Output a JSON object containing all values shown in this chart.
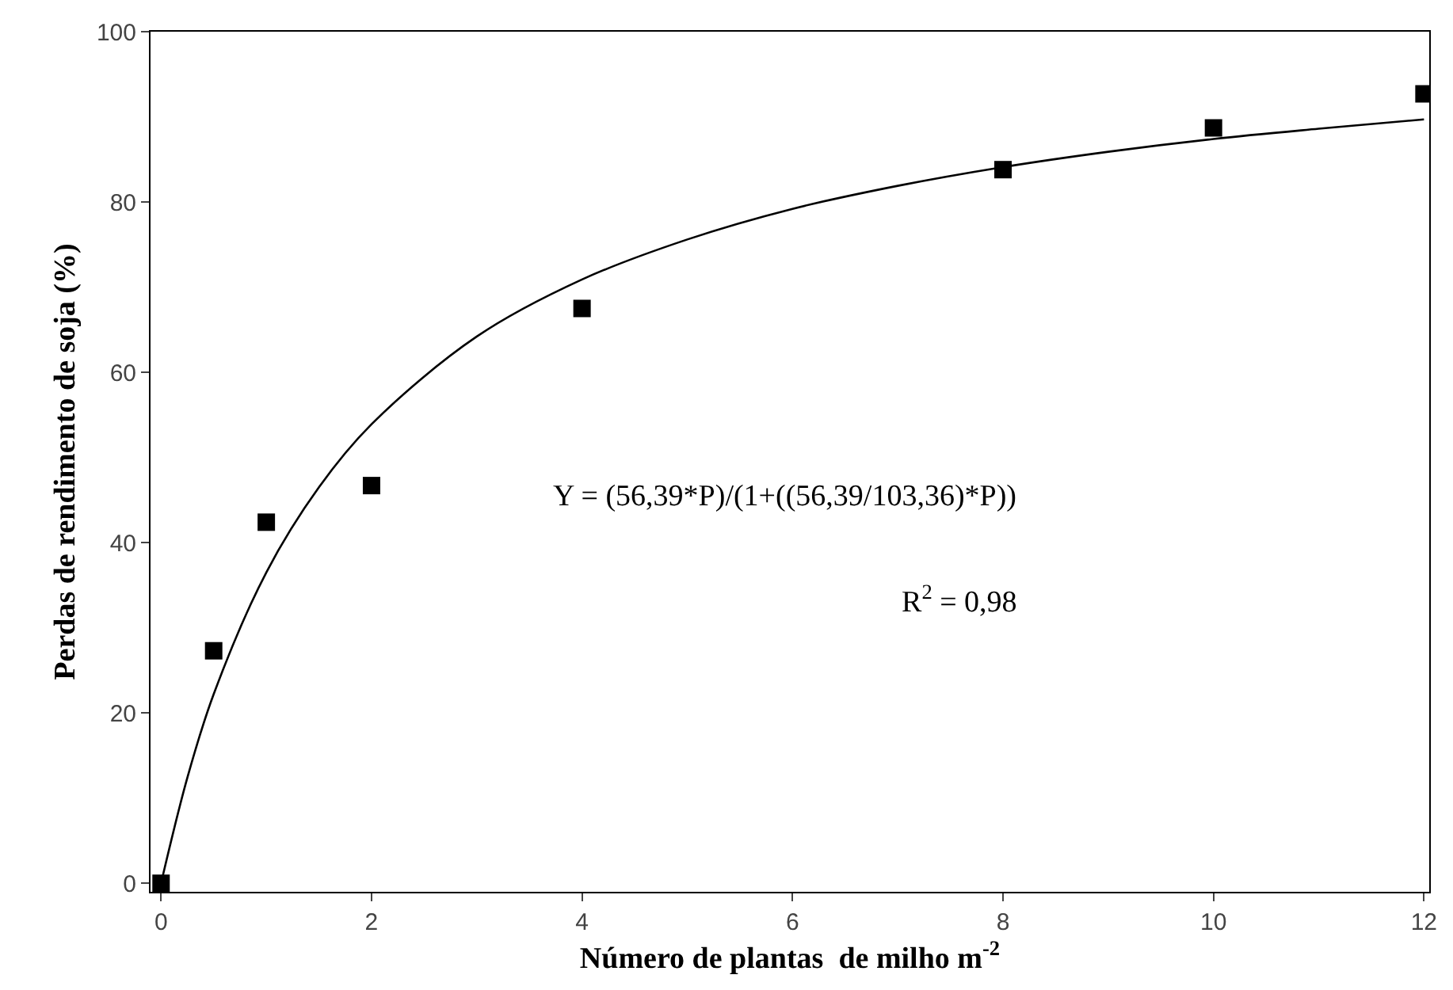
{
  "chart_data": {
    "type": "scatter",
    "xlabel": "Número de plantas  de milho m$^{-2}$",
    "ylabel": "Perdas de rendimento de soja (%)",
    "x": [
      0,
      0.5,
      1,
      2,
      4,
      8,
      10,
      12
    ],
    "line_style": "solid",
    "series": [
      {
        "marker": "square",
        "color": "#000000",
        "values": [
          0,
          27.3,
          42.4,
          46.7,
          67.5,
          83.8,
          88.7,
          92.7
        ]
      },
      {
        "type": "line",
        "marker": "none",
        "color": "#000000",
        "x": [
          0,
          0.25,
          0.5,
          1,
          1.5,
          2,
          3,
          4,
          5,
          6,
          7,
          8,
          9,
          10,
          11,
          12
        ],
        "values": [
          0,
          12.4,
          22.2,
          36.5,
          46.5,
          53.9,
          64.2,
          70.9,
          75.6,
          79.2,
          81.9,
          84.1,
          85.9,
          87.4,
          88.6,
          89.7
        ]
      }
    ],
    "xlim": [
      -0.1,
      12.05
    ],
    "ylim": [
      -1,
      100
    ],
    "xticks": [
      0,
      2,
      4,
      6,
      8,
      10,
      12
    ],
    "yticks": [
      0,
      20,
      40,
      60,
      80,
      100
    ],
    "annotations": [
      "Y = (56,39*P)/(1+((56,39/103,36)*P))",
      "R$^{2}$ = 0,98"
    ]
  }
}
